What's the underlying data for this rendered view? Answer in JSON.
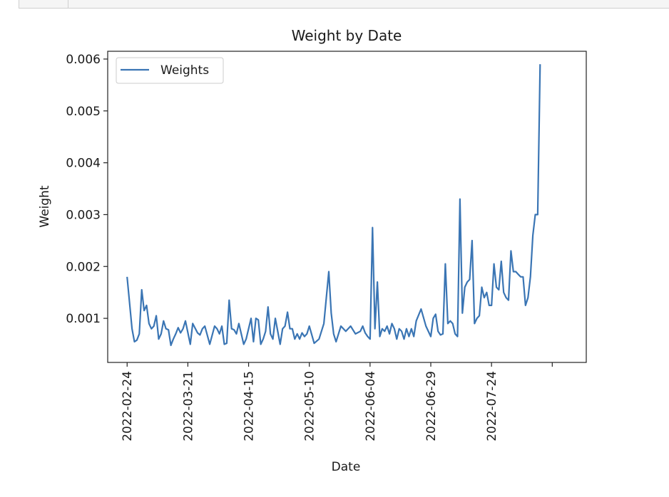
{
  "chart_data": {
    "type": "line",
    "title": "Weight by Date",
    "xlabel": "Date",
    "ylabel": "Weight",
    "legend": {
      "placement": "upper-left",
      "entries": [
        "Weights"
      ]
    },
    "colors": {
      "series": "#3a75b4",
      "axis": "#222222"
    },
    "x_ticks": [
      "2022-02-24",
      "2022-03-21",
      "2022-04-15",
      "2022-05-10",
      "2022-06-04",
      "2022-06-29",
      "2022-07-24"
    ],
    "y_ticks": [
      "0.001",
      "0.002",
      "0.003",
      "0.004",
      "0.005",
      "0.006"
    ],
    "xlim": [
      "2022-02-16",
      "2022-09-01"
    ],
    "ylim": [
      0.00015,
      0.00615
    ],
    "grid": false,
    "series": [
      {
        "name": "Weights",
        "x": [
          "2022-02-24",
          "2022-02-26",
          "2022-02-27",
          "2022-02-28",
          "2022-03-01",
          "2022-03-02",
          "2022-03-03",
          "2022-03-04",
          "2022-03-05",
          "2022-03-06",
          "2022-03-07",
          "2022-03-08",
          "2022-03-09",
          "2022-03-10",
          "2022-03-11",
          "2022-03-12",
          "2022-03-13",
          "2022-03-14",
          "2022-03-15",
          "2022-03-16",
          "2022-03-17",
          "2022-03-18",
          "2022-03-19",
          "2022-03-20",
          "2022-03-22",
          "2022-03-23",
          "2022-03-25",
          "2022-03-26",
          "2022-03-27",
          "2022-03-28",
          "2022-03-30",
          "2022-04-01",
          "2022-04-02",
          "2022-04-03",
          "2022-04-04",
          "2022-04-05",
          "2022-04-06",
          "2022-04-07",
          "2022-04-08",
          "2022-04-09",
          "2022-04-10",
          "2022-04-11",
          "2022-04-13",
          "2022-04-14",
          "2022-04-16",
          "2022-04-17",
          "2022-04-18",
          "2022-04-19",
          "2022-04-20",
          "2022-04-21",
          "2022-04-22",
          "2022-04-23",
          "2022-04-24",
          "2022-04-25",
          "2022-04-26",
          "2022-04-28",
          "2022-04-29",
          "2022-04-30",
          "2022-05-01",
          "2022-05-02",
          "2022-05-03",
          "2022-05-04",
          "2022-05-05",
          "2022-05-06",
          "2022-05-07",
          "2022-05-08",
          "2022-05-09",
          "2022-05-10",
          "2022-05-12",
          "2022-05-14",
          "2022-05-16",
          "2022-05-18",
          "2022-05-19",
          "2022-05-20",
          "2022-05-21",
          "2022-05-22",
          "2022-05-23",
          "2022-05-25",
          "2022-05-27",
          "2022-05-29",
          "2022-05-31",
          "2022-06-01",
          "2022-06-02",
          "2022-06-03",
          "2022-06-04",
          "2022-06-05",
          "2022-06-06",
          "2022-06-07",
          "2022-06-08",
          "2022-06-09",
          "2022-06-10",
          "2022-06-11",
          "2022-06-12",
          "2022-06-13",
          "2022-06-14",
          "2022-06-15",
          "2022-06-16",
          "2022-06-17",
          "2022-06-18",
          "2022-06-19",
          "2022-06-20",
          "2022-06-21",
          "2022-06-22",
          "2022-06-23",
          "2022-06-25",
          "2022-06-27",
          "2022-06-29",
          "2022-06-30",
          "2022-07-01",
          "2022-07-02",
          "2022-07-03",
          "2022-07-04",
          "2022-07-05",
          "2022-07-06",
          "2022-07-07",
          "2022-07-08",
          "2022-07-09",
          "2022-07-10",
          "2022-07-11",
          "2022-07-12",
          "2022-07-13",
          "2022-07-14",
          "2022-07-15",
          "2022-07-16",
          "2022-07-17",
          "2022-07-18",
          "2022-07-19",
          "2022-07-20",
          "2022-07-21",
          "2022-07-22",
          "2022-07-23",
          "2022-07-24",
          "2022-07-25",
          "2022-07-26",
          "2022-07-27",
          "2022-07-28",
          "2022-07-29",
          "2022-07-30",
          "2022-07-31",
          "2022-08-01",
          "2022-08-02",
          "2022-08-03",
          "2022-08-04",
          "2022-08-05",
          "2022-08-06",
          "2022-08-07",
          "2022-08-08",
          "2022-08-09",
          "2022-08-10",
          "2022-08-11",
          "2022-08-12",
          "2022-08-13"
        ],
        "values": [
          0.0018,
          0.0008,
          0.00055,
          0.00058,
          0.0007,
          0.00155,
          0.00115,
          0.00125,
          0.0009,
          0.0008,
          0.00085,
          0.00105,
          0.0006,
          0.0007,
          0.00095,
          0.0008,
          0.00078,
          0.00048,
          0.0006,
          0.0007,
          0.00082,
          0.00072,
          0.0008,
          0.00095,
          0.0005,
          0.0009,
          0.00072,
          0.00068,
          0.0008,
          0.00085,
          0.0005,
          0.00085,
          0.0008,
          0.0007,
          0.00085,
          0.0005,
          0.00052,
          0.00135,
          0.0008,
          0.00078,
          0.0007,
          0.0009,
          0.0005,
          0.0006,
          0.001,
          0.00055,
          0.001,
          0.00097,
          0.0005,
          0.0006,
          0.00075,
          0.00122,
          0.0007,
          0.0006,
          0.001,
          0.0005,
          0.0008,
          0.00085,
          0.00112,
          0.0008,
          0.0008,
          0.0006,
          0.0007,
          0.0006,
          0.00072,
          0.00065,
          0.0007,
          0.00085,
          0.00052,
          0.0006,
          0.0009,
          0.0019,
          0.0011,
          0.0007,
          0.00055,
          0.0007,
          0.00085,
          0.00075,
          0.00085,
          0.0007,
          0.00075,
          0.00085,
          0.00072,
          0.00065,
          0.0006,
          0.00275,
          0.0008,
          0.0017,
          0.00065,
          0.0008,
          0.00075,
          0.00085,
          0.0007,
          0.0009,
          0.0008,
          0.0006,
          0.0008,
          0.00075,
          0.0006,
          0.0008,
          0.00065,
          0.0008,
          0.00065,
          0.00095,
          0.00118,
          0.00085,
          0.00065,
          0.001,
          0.00108,
          0.00075,
          0.00068,
          0.0007,
          0.00205,
          0.0009,
          0.00095,
          0.0009,
          0.0007,
          0.00065,
          0.0033,
          0.0011,
          0.0016,
          0.0017,
          0.00175,
          0.0025,
          0.0009,
          0.001,
          0.00105,
          0.0016,
          0.0014,
          0.0015,
          0.00125,
          0.00125,
          0.00205,
          0.0016,
          0.00155,
          0.0021,
          0.0015,
          0.0014,
          0.00135,
          0.0023,
          0.0019,
          0.0019,
          0.00185,
          0.0018,
          0.0018,
          0.00125,
          0.0014,
          0.0018,
          0.0026,
          0.003,
          0.003,
          0.0059
        ]
      }
    ]
  }
}
